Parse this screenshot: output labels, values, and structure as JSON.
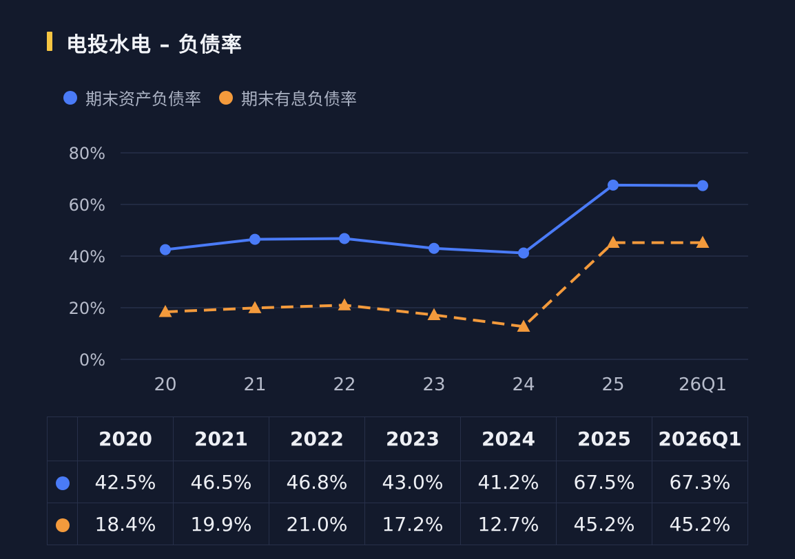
{
  "header": {
    "title": "电投水电 – 负债率",
    "accent_color": "#f5c542"
  },
  "chart_data": {
    "type": "line",
    "title": "电投水电 – 负债率",
    "categories": [
      "20",
      "21",
      "22",
      "23",
      "24",
      "25",
      "26Q1"
    ],
    "yticks": [
      "0%",
      "20%",
      "40%",
      "60%",
      "80%"
    ],
    "ylim": [
      0,
      80
    ],
    "grid": true,
    "legend_position": "top-left",
    "series": [
      {
        "name": "期末资产负债率",
        "values": [
          42.5,
          46.5,
          46.8,
          43.0,
          41.2,
          67.5,
          67.3
        ],
        "color": "#4a7bf7",
        "marker": "circle",
        "style": "solid"
      },
      {
        "name": "期末有息负债率",
        "values": [
          18.4,
          19.9,
          21.0,
          17.2,
          12.7,
          45.2,
          45.2
        ],
        "color": "#f39a3c",
        "marker": "triangle",
        "style": "dashed"
      }
    ]
  },
  "table": {
    "headers": [
      "2020",
      "2021",
      "2022",
      "2023",
      "2024",
      "2025",
      "2026Q1"
    ],
    "rows": [
      {
        "color": "#4a7bf7",
        "values": [
          "42.5%",
          "46.5%",
          "46.8%",
          "43.0%",
          "41.2%",
          "67.5%",
          "67.3%"
        ]
      },
      {
        "color": "#f39a3c",
        "values": [
          "18.4%",
          "19.9%",
          "21.0%",
          "17.2%",
          "12.7%",
          "45.2%",
          "45.2%"
        ]
      }
    ]
  }
}
